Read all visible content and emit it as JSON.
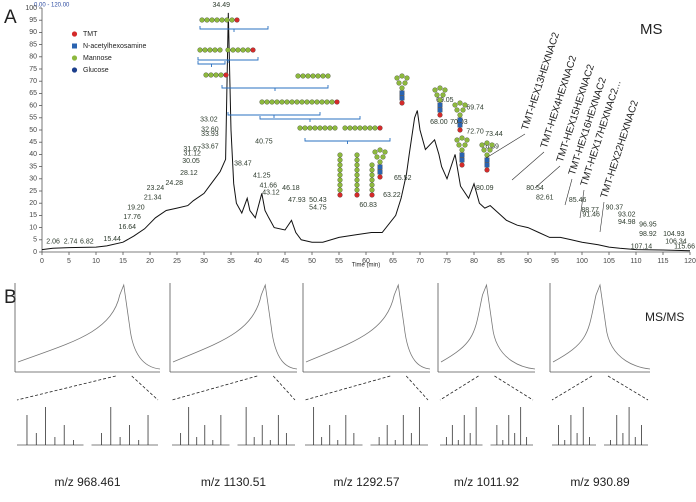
{
  "chart_data": {
    "type": "line",
    "subtitle": "0.00 - 120.00",
    "corner_label": "MS",
    "x_label": "Time (min)",
    "color": "#111111",
    "x": [
      0,
      2,
      5,
      10,
      12,
      15,
      17,
      19,
      21,
      23,
      25,
      27,
      28,
      30,
      31,
      32,
      33,
      34,
      34.5,
      35,
      35.5,
      36,
      37,
      38,
      38.5,
      39.5,
      40.7,
      41.3,
      42,
      43,
      45,
      46.2,
      47,
      48,
      50,
      52,
      55,
      58,
      61,
      63,
      65.5,
      66.5,
      67.5,
      68,
      69,
      69.5,
      70,
      71,
      72.7,
      73.5,
      74,
      75,
      76.5,
      77.5,
      79,
      80,
      81,
      82,
      83,
      85,
      86,
      88,
      90,
      92,
      94,
      96,
      98,
      100,
      103,
      105,
      107,
      110,
      115,
      120
    ],
    "values": [
      1,
      1.5,
      1.8,
      2,
      2.5,
      4,
      6.5,
      9.5,
      14,
      17,
      18,
      19,
      21,
      24,
      27,
      30,
      33,
      38,
      98,
      50,
      28,
      20,
      16,
      22,
      17,
      14,
      24,
      17,
      14,
      10,
      9,
      13,
      8,
      5,
      4,
      4,
      6,
      7,
      8,
      8,
      15,
      22,
      32,
      40,
      55,
      58,
      50,
      42,
      46,
      40,
      35,
      30,
      40,
      27,
      22,
      28,
      20,
      18,
      19,
      15,
      13,
      11,
      10,
      8,
      6,
      6,
      5,
      4,
      3,
      2,
      1.5,
      1,
      0.8,
      0.5
    ],
    "xlim": [
      0,
      120
    ],
    "xticks": [
      0,
      5,
      10,
      15,
      20,
      25,
      30,
      35,
      40,
      45,
      50,
      55,
      60,
      65,
      70,
      75,
      80,
      85,
      90,
      95,
      100,
      105,
      110,
      115,
      120
    ],
    "ylim": [
      0,
      100
    ],
    "yticks": [
      0,
      5,
      10,
      15,
      20,
      25,
      30,
      35,
      40,
      45,
      50,
      55,
      60,
      65,
      70,
      75,
      80,
      85,
      90,
      95,
      100
    ],
    "annotations": [
      {
        "text": "2.06",
        "x": 2.06,
        "y": 3
      },
      {
        "text": "2.74",
        "x": 5.3,
        "y": 3
      },
      {
        "text": "6.82",
        "x": 8.3,
        "y": 3
      },
      {
        "text": "15.44",
        "x": 13,
        "y": 4
      },
      {
        "text": "16.64",
        "x": 15.8,
        "y": 9
      },
      {
        "text": "17.76",
        "x": 16.7,
        "y": 13
      },
      {
        "text": "19.20",
        "x": 17.4,
        "y": 17
      },
      {
        "text": "21.34",
        "x": 20.5,
        "y": 21
      },
      {
        "text": "23.24",
        "x": 21,
        "y": 25
      },
      {
        "text": "24.28",
        "x": 24.5,
        "y": 27
      },
      {
        "text": "28.12",
        "x": 27.2,
        "y": 31
      },
      {
        "text": "30.05",
        "x": 27.6,
        "y": 36
      },
      {
        "text": "31.12",
        "x": 27.8,
        "y": 39
      },
      {
        "text": "31.67",
        "x": 27.8,
        "y": 41
      },
      {
        "text": "32.60",
        "x": 31.1,
        "y": 49
      },
      {
        "text": "33.02",
        "x": 30.9,
        "y": 53
      },
      {
        "text": "33.93",
        "x": 31.1,
        "y": 47
      },
      {
        "text": "33.67",
        "x": 31.1,
        "y": 42
      },
      {
        "text": "34.49",
        "x": 33.2,
        "y": 100
      },
      {
        "text": "38.47",
        "x": 37.2,
        "y": 35
      },
      {
        "text": "40.75",
        "x": 41.1,
        "y": 44
      },
      {
        "text": "41.25",
        "x": 40.7,
        "y": 30
      },
      {
        "text": "41.66",
        "x": 41.9,
        "y": 26
      },
      {
        "text": "43.12",
        "x": 42.4,
        "y": 23
      },
      {
        "text": "46.18",
        "x": 46.1,
        "y": 25
      },
      {
        "text": "47.93",
        "x": 47.2,
        "y": 20
      },
      {
        "text": "50.43",
        "x": 51.1,
        "y": 20
      },
      {
        "text": "54.75",
        "x": 51.1,
        "y": 17
      },
      {
        "text": "60.83",
        "x": 60.4,
        "y": 18
      },
      {
        "text": "63.22",
        "x": 64.8,
        "y": 22
      },
      {
        "text": "65.52",
        "x": 66.8,
        "y": 29
      },
      {
        "text": "68.00",
        "x": 73.5,
        "y": 52
      },
      {
        "text": "69.05",
        "x": 74.6,
        "y": 61
      },
      {
        "text": "70.03",
        "x": 77.2,
        "y": 52
      },
      {
        "text": "69.74",
        "x": 80.2,
        "y": 58
      },
      {
        "text": "72.70",
        "x": 80.2,
        "y": 48
      },
      {
        "text": "73.44",
        "x": 83.7,
        "y": 47
      },
      {
        "text": "76.59",
        "x": 83,
        "y": 42
      },
      {
        "text": "80.09",
        "x": 82,
        "y": 25
      },
      {
        "text": "80.54",
        "x": 91.3,
        "y": 25
      },
      {
        "text": "82.61",
        "x": 93.1,
        "y": 21
      },
      {
        "text": "85.46",
        "x": 99.2,
        "y": 20
      },
      {
        "text": "88.77",
        "x": 101.5,
        "y": 16
      },
      {
        "text": "91.46",
        "x": 101.7,
        "y": 14
      },
      {
        "text": "90.37",
        "x": 106,
        "y": 17
      },
      {
        "text": "93.02",
        "x": 108.3,
        "y": 14
      },
      {
        "text": "94.98",
        "x": 108.3,
        "y": 11
      },
      {
        "text": "96.95",
        "x": 112.2,
        "y": 10
      },
      {
        "text": "98.92",
        "x": 112.2,
        "y": 6
      },
      {
        "text": "104.93",
        "x": 117,
        "y": 6
      },
      {
        "text": "106.34",
        "x": 117.4,
        "y": 3
      },
      {
        "text": "107.14",
        "x": 111,
        "y": 1
      },
      {
        "text": "115.66",
        "x": 119,
        "y": 1
      }
    ],
    "compositions": [
      "TMT-HEX13HEXNAC2",
      "TMT-HEX4HEXNAC2",
      "TMT-HEX15HEXNAC2",
      "TMT-HEX16HEXNAC2",
      "TMT-HEX17HEXNAC2...",
      "TMT-HEX22HEXNAC2"
    ],
    "legend": [
      {
        "name": "TMT",
        "color": "#d42a2a"
      },
      {
        "name": "N-acetylhexosamine",
        "color": "#2a63b0"
      },
      {
        "name": "Mannose",
        "color": "#8db83e"
      },
      {
        "name": "Glucose",
        "color": "#1c3f8c"
      }
    ]
  },
  "panel_labels": {
    "a": "A",
    "b": "B"
  },
  "msms": {
    "label": "MS/MS",
    "precursors": [
      "m/z 968.461",
      "m/z 1130.51",
      "m/z 1292.57",
      "m/z 1011.92",
      "m/z 930.89"
    ]
  }
}
